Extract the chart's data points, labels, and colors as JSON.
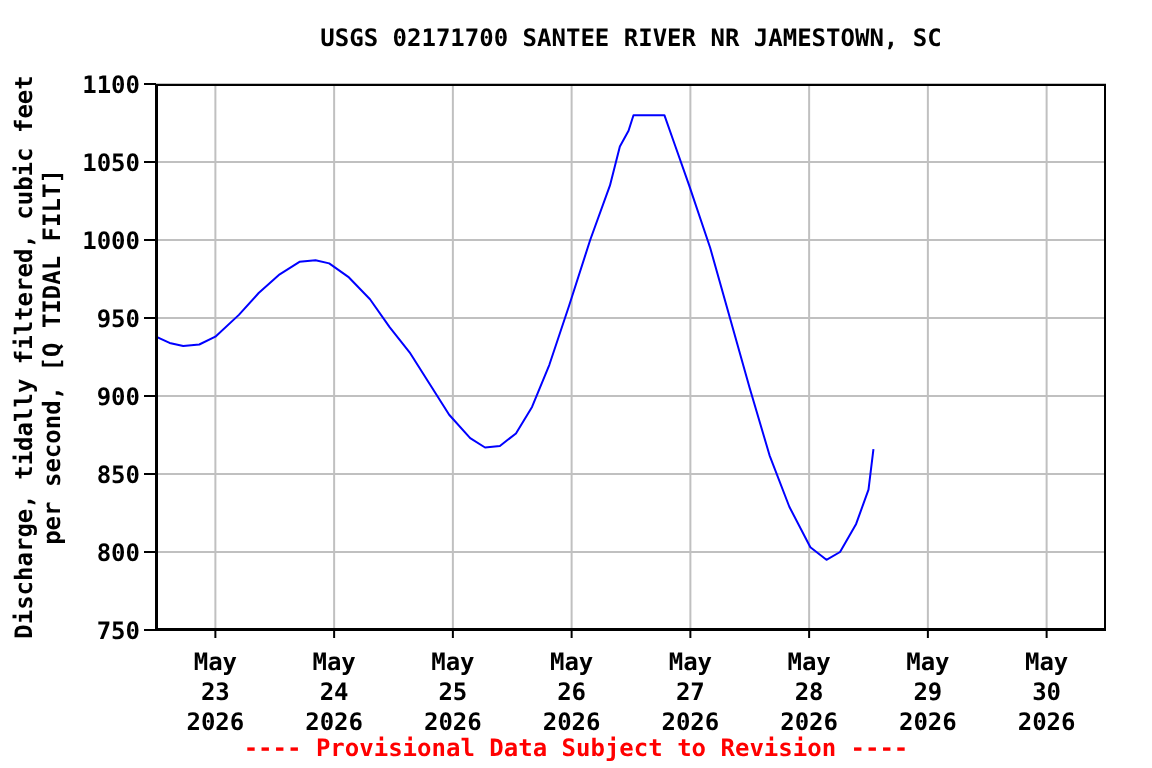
{
  "chart_data": {
    "type": "line",
    "title": "USGS 02171700 SANTEE RIVER NR JAMESTOWN, SC",
    "ylabel": "Discharge, tidally filtered, cubic feet\nper second, [Q TIDAL FILT]",
    "annotations": [
      "---- Provisional Data Subject to Revision ----"
    ],
    "x": [
      "2026-05-22T12:00",
      "2026-05-22T14:45",
      "2026-05-22T17:30",
      "2026-05-22T20:45",
      "2026-05-23T00:00",
      "2026-05-23T04:45",
      "2026-05-23T08:45",
      "2026-05-23T13:00",
      "2026-05-23T17:00",
      "2026-05-23T20:15",
      "2026-05-23T23:00",
      "2026-05-24T03:00",
      "2026-05-24T07:15",
      "2026-05-24T11:15",
      "2026-05-24T15:15",
      "2026-05-24T19:15",
      "2026-05-24T23:15",
      "2026-05-25T03:30",
      "2026-05-25T06:30",
      "2026-05-25T09:30",
      "2026-05-25T12:45",
      "2026-05-25T16:00",
      "2026-05-25T19:30",
      "2026-05-25T23:30",
      "2026-05-26T03:45",
      "2026-05-26T07:45",
      "2026-05-26T09:45",
      "2026-05-26T11:30",
      "2026-05-26T12:30",
      "2026-05-26T18:45",
      "2026-05-26T20:45",
      "2026-05-26T23:45",
      "2026-05-27T04:00",
      "2026-05-27T08:00",
      "2026-05-27T12:00",
      "2026-05-27T16:00",
      "2026-05-27T20:00",
      "2026-05-28T00:15",
      "2026-05-28T03:30",
      "2026-05-28T06:15",
      "2026-05-28T09:30",
      "2026-05-28T12:00",
      "2026-05-28T13:00"
    ],
    "series": [
      {
        "color": "#0000ff",
        "values": [
          938,
          934,
          932,
          933,
          938,
          952,
          966,
          978,
          986,
          987,
          985,
          976,
          962,
          944,
          928,
          908,
          888,
          873,
          867,
          868,
          876,
          893,
          920,
          958,
          1000,
          1035,
          1060,
          1070,
          1080,
          1080,
          1062,
          1035,
          995,
          950,
          905,
          862,
          829,
          803,
          795,
          800,
          818,
          840,
          866
        ]
      }
    ],
    "xlim": [
      "2026-05-22T12:00",
      "2026-05-30T12:00"
    ],
    "xticks": [
      {
        "value": "2026-05-23",
        "label": "May\n23\n2026"
      },
      {
        "value": "2026-05-24",
        "label": "May\n24\n2026"
      },
      {
        "value": "2026-05-25",
        "label": "May\n25\n2026"
      },
      {
        "value": "2026-05-26",
        "label": "May\n26\n2026"
      },
      {
        "value": "2026-05-27",
        "label": "May\n27\n2026"
      },
      {
        "value": "2026-05-28",
        "label": "May\n28\n2026"
      },
      {
        "value": "2026-05-29",
        "label": "May\n29\n2026"
      },
      {
        "value": "2026-05-30",
        "label": "May\n30\n2026"
      }
    ],
    "ylim": [
      750,
      1100
    ],
    "yticks": [
      750,
      800,
      850,
      900,
      950,
      1000,
      1050,
      1100
    ],
    "grid": true,
    "marker": "none",
    "line_style": "solid"
  }
}
